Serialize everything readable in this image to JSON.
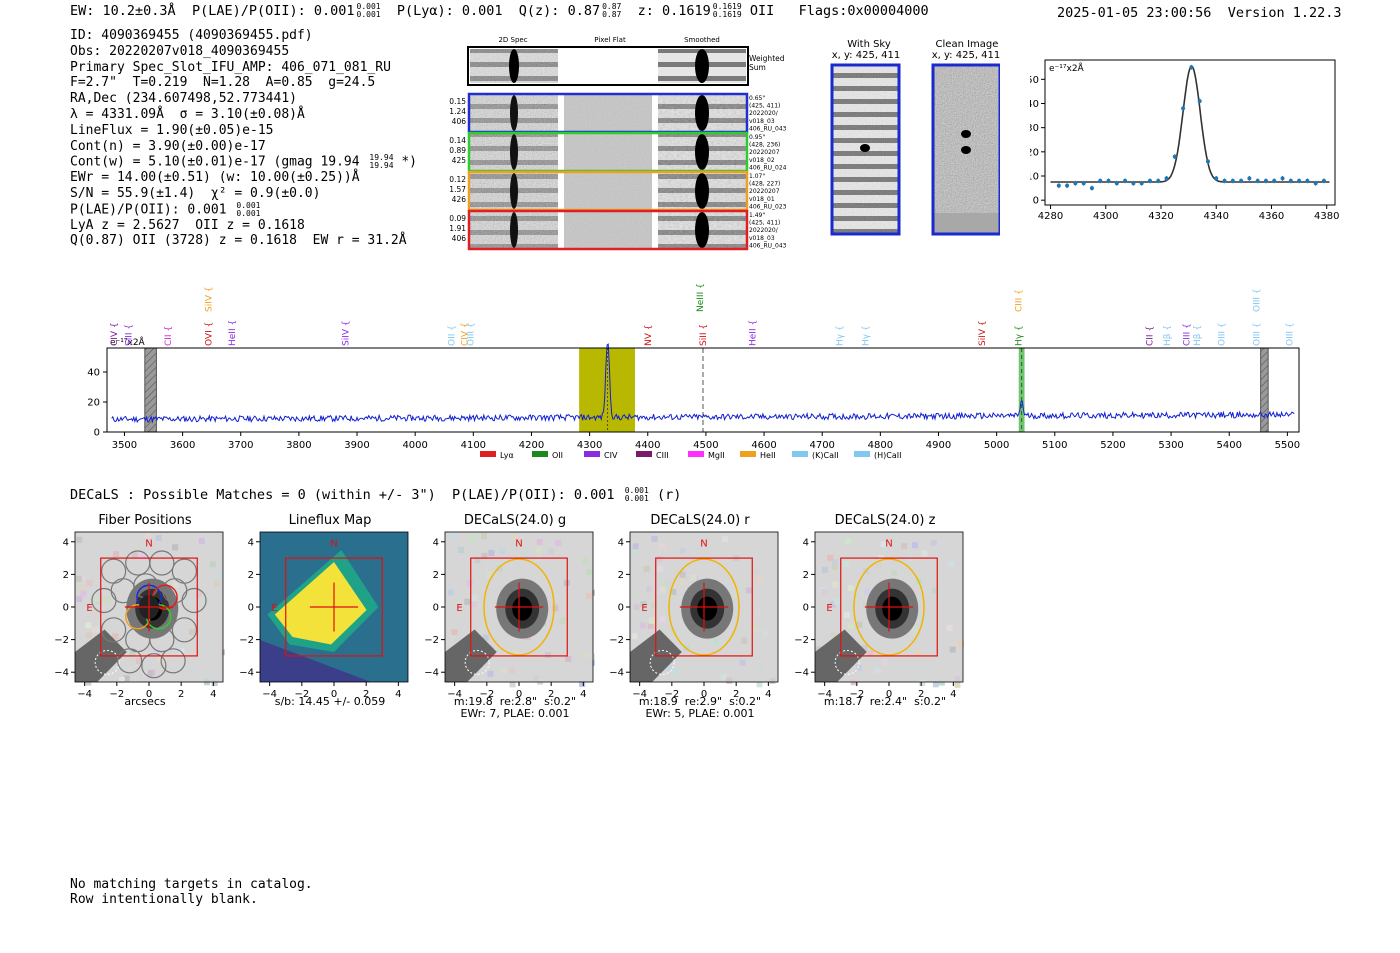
{
  "header": {
    "ew": "EW: 10.2±0.3Å",
    "plae_label": "P(LAE)/P(OII): 0.001",
    "plae_hi": "0.001",
    "plae_lo": "0.001",
    "plya": "P(Lyα): 0.001",
    "qz_label": "Q(z): 0.87",
    "qz_hi": "0.87",
    "qz_lo": "0.87",
    "z_label": "z: 0.1619",
    "z_hi": "0.1619",
    "z_lo": "0.1619",
    "z_line": "OII",
    "flags": "Flags:0x00004000",
    "datetime": "2025-01-05 23:00:56",
    "version": "Version 1.22.3"
  },
  "info": {
    "id": "ID: 4090369455 (4090369455.pdf)",
    "obs": "Obs: 20220207v018_4090369455",
    "primary": "Primary Spec_Slot_IFU_AMP: 406_071_081_RU",
    "params": "F=2.7\"  T=0.219  N=1.28  A=0.85  g=24.5",
    "radec": "RA,Dec (234.607498,52.773441)",
    "lambda": "λ = 4331.09Å  σ = 3.10(±0.08)Å",
    "lineflux": "LineFlux = 1.90(±0.05)e-15",
    "contn": "Cont(n) = 3.90(±0.00)e-17",
    "contw": "Cont(w) = 5.10(±0.01)e-17 (gmag 19.94",
    "gmag_hi": "19.94",
    "gmag_lo": "19.94",
    "contw_end": "*)",
    "ewr": "EWr = 14.00(±0.51) (w: 10.00(±0.25))Å",
    "sn": "S/N = 55.9(±1.4)  χ² = 0.9(±0.0)",
    "plae": "P(LAE)/P(OII): 0.001",
    "plae_hi": "0.001",
    "plae_lo": "0.001",
    "lya": "LyA z = 2.5627  OII z = 0.1618",
    "q": "Q(0.87) OII (3728) z = 0.1618  EW r = 31.2Å"
  },
  "cutouts": {
    "col_headers": [
      "2D Spec",
      "Pixel Flat",
      "Smoothed"
    ],
    "weighted_sum": "Weighted Sum",
    "rows": [
      {
        "left": [
          "0.15",
          "1.24",
          "406"
        ],
        "right": [
          "0.65\"",
          "(425, 411)",
          "2022020/",
          "v018_03",
          "406_RU_043"
        ],
        "color": "#1f2fd0"
      },
      {
        "left": [
          "0.14",
          "0.89",
          "425"
        ],
        "right": [
          "0.95\"",
          "(428, 236)",
          "20220207",
          "v018_02",
          "406_RU_024"
        ],
        "color": "#2ecc2e"
      },
      {
        "left": [
          "0.12",
          "1.57",
          "426"
        ],
        "right": [
          "1.07\"",
          "(428, 227)",
          "20220207",
          "v018_01",
          "406_RU_023"
        ],
        "color": "#f0a020"
      },
      {
        "left": [
          "0.09",
          "1.91",
          "406"
        ],
        "right": [
          "1.49\"",
          "(425, 411)",
          "2022020/",
          "v018_03",
          "406_RU_043"
        ],
        "color": "#e02020"
      }
    ],
    "with_sky_title": "With Sky",
    "with_sky_xy": "x, y: 425, 411",
    "clean_title": "Clean Image",
    "clean_xy": "x, y: 425, 411"
  },
  "zoom_fit": {
    "unit_label": "e⁻¹⁷x2Å",
    "chart_data": {
      "type": "line",
      "x_ticks": [
        4280,
        4300,
        4320,
        4340,
        4360,
        4380
      ],
      "y_ticks": [
        0,
        10,
        20,
        30,
        40,
        50
      ],
      "xlim": [
        4278,
        4383
      ],
      "ylim": [
        -2,
        58
      ],
      "fit_center": 4331.09,
      "fit_sigma": 3.1,
      "fit_peak": 48,
      "fit_cont": 7.5,
      "points_x": [
        4283,
        4286,
        4289,
        4292,
        4295,
        4298,
        4301,
        4304,
        4307,
        4310,
        4313,
        4316,
        4319,
        4322,
        4325,
        4328,
        4331,
        4334,
        4337,
        4340,
        4343,
        4346,
        4349,
        4352,
        4355,
        4358,
        4361,
        4364,
        4367,
        4370,
        4373,
        4376,
        4379
      ],
      "points_y": [
        6,
        6,
        7,
        7,
        5,
        8,
        8,
        7,
        8,
        7,
        7,
        8,
        8,
        9,
        18,
        38,
        55,
        41,
        16,
        9,
        8,
        8,
        8,
        9,
        8,
        8,
        8,
        9,
        8,
        8,
        8,
        7,
        8
      ]
    }
  },
  "spectrum": {
    "unit_label": "e⁻¹⁷x2Å",
    "chart_data": {
      "type": "line",
      "xlim": [
        3470,
        5520
      ],
      "ylim": [
        0,
        56
      ],
      "x_ticks": [
        3500,
        3600,
        3700,
        3800,
        3900,
        4000,
        4100,
        4200,
        4300,
        4400,
        4500,
        4600,
        4700,
        4800,
        4900,
        5000,
        5100,
        5200,
        5300,
        5400,
        5500
      ],
      "y_ticks": [
        0,
        20,
        40
      ],
      "continuum": 8.5,
      "emission": [
        {
          "center": 4331,
          "sigma": 3.1,
          "peak": 52
        },
        {
          "center": 5043,
          "sigma": 2.5,
          "peak": 10
        }
      ],
      "highlight": {
        "from": 4282,
        "to": 4378,
        "color": "#b8b800"
      },
      "dashed_line": 4495,
      "green_band": {
        "from": 5038,
        "to": 5048,
        "center": 5043
      },
      "hatched": [
        {
          "from": 3535,
          "to": 3555
        },
        {
          "from": 5454,
          "to": 5467
        }
      ],
      "line_labels": [
        {
          "name": "CIV",
          "x": 3487,
          "row": 2,
          "color": "#7a1a9a"
        },
        {
          "name": "SiII",
          "x": 3512,
          "row": 2,
          "color": "#8a2be2"
        },
        {
          "name": "CII",
          "x": 3580,
          "row": 2,
          "color": "#d020d0"
        },
        {
          "name": "SiIV",
          "x": 3650,
          "row": 0,
          "color": "#f0a020"
        },
        {
          "name": "OVI",
          "x": 3650,
          "row": 2,
          "color": "#d01010"
        },
        {
          "name": "HeII",
          "x": 3690,
          "row": 2,
          "color": "#8a2be2"
        },
        {
          "name": "SiIV",
          "x": 3885,
          "row": 2,
          "color": "#8a2be2"
        },
        {
          "name": "OII",
          "x": 4068,
          "row": 2,
          "color": "#80c8f0"
        },
        {
          "name": "CIV",
          "x": 4090,
          "row": 2,
          "color": "#f0a020"
        },
        {
          "name": "OIII",
          "x": 4100,
          "row": 2,
          "color": "#80c8f0"
        },
        {
          "name": "NV",
          "x": 4406,
          "row": 2,
          "color": "#d01010"
        },
        {
          "name": "NeIII",
          "x": 4495,
          "row": 0,
          "color": "#1a8a1a"
        },
        {
          "name": "SiII",
          "x": 4500,
          "row": 2,
          "color": "#d01010"
        },
        {
          "name": "HeII",
          "x": 4585,
          "row": 2,
          "color": "#8a2be2"
        },
        {
          "name": "Hγ",
          "x": 4735,
          "row": 2,
          "color": "#80c8f0"
        },
        {
          "name": "Hγ",
          "x": 4780,
          "row": 2,
          "color": "#80c8f0"
        },
        {
          "name": "SiIV",
          "x": 4980,
          "row": 2,
          "color": "#d01010"
        },
        {
          "name": "CIII",
          "x": 5043,
          "row": 0,
          "color": "#f0a020"
        },
        {
          "name": "Hγ",
          "x": 5043,
          "row": 2,
          "color": "#1a8a1a"
        },
        {
          "name": "CII",
          "x": 5268,
          "row": 2,
          "color": "#7a1a9a"
        },
        {
          "name": "Hβ",
          "x": 5298,
          "row": 2,
          "color": "#80c8f0"
        },
        {
          "name": "CIII",
          "x": 5332,
          "row": 2,
          "color": "#8a2be2"
        },
        {
          "name": "Hβ",
          "x": 5350,
          "row": 2,
          "color": "#80c8f0"
        },
        {
          "name": "OIII",
          "x": 5392,
          "row": 2,
          "color": "#80c8f0"
        },
        {
          "name": "OIII",
          "x": 5452,
          "row": 0,
          "color": "#80c8f0"
        },
        {
          "name": "OIII",
          "x": 5452,
          "row": 2,
          "color": "#80c8f0"
        },
        {
          "name": "OIII",
          "x": 5509,
          "row": 2,
          "color": "#80c8f0"
        }
      ],
      "legend": [
        {
          "name": "Lyα",
          "color": "#e02020"
        },
        {
          "name": "OII",
          "color": "#1a8a1a"
        },
        {
          "name": "CIV",
          "color": "#8a2be2"
        },
        {
          "name": "CIII",
          "color": "#7a1a6a"
        },
        {
          "name": "MgII",
          "color": "#ff30ff"
        },
        {
          "name": "HeII",
          "color": "#f0a020"
        },
        {
          "name": "(K)CaII",
          "color": "#80c8f0"
        },
        {
          "name": "(H)CaII",
          "color": "#80c8f0"
        }
      ]
    }
  },
  "decals": {
    "line": "DECaLS : Possible Matches = 0 (within +/- 3\")  P(LAE)/P(OII): 0.001",
    "plae_hi": "0.001",
    "plae_lo": "0.001",
    "line_end": "(r)",
    "panels": [
      {
        "title": "Fiber Positions",
        "caption": "arcsecs",
        "kind": "fiber"
      },
      {
        "title": "Lineflux Map",
        "caption": "s/b: 14.45 +/- 0.059",
        "kind": "lineflux"
      },
      {
        "title": "DECaLS(24.0) g",
        "caption": "m:19.8  re:2.8\"  s:0.2\"\nEWr: 7, PLAE: 0.001",
        "kind": "band"
      },
      {
        "title": "DECaLS(24.0) r",
        "caption": "m:18.9  re:2.9\"  s:0.2\"\nEWr: 5, PLAE: 0.001",
        "kind": "band"
      },
      {
        "title": "DECaLS(24.0) z",
        "caption": "m:18.7  re:2.4\"  s:0.2\"",
        "kind": "band"
      }
    ],
    "axis_ticks": [
      "-4",
      "-2",
      "0",
      "2",
      "4"
    ],
    "north": "N",
    "east": "E"
  },
  "note": {
    "line1": "No matching targets in catalog.",
    "line2": "Row intentionally blank."
  }
}
